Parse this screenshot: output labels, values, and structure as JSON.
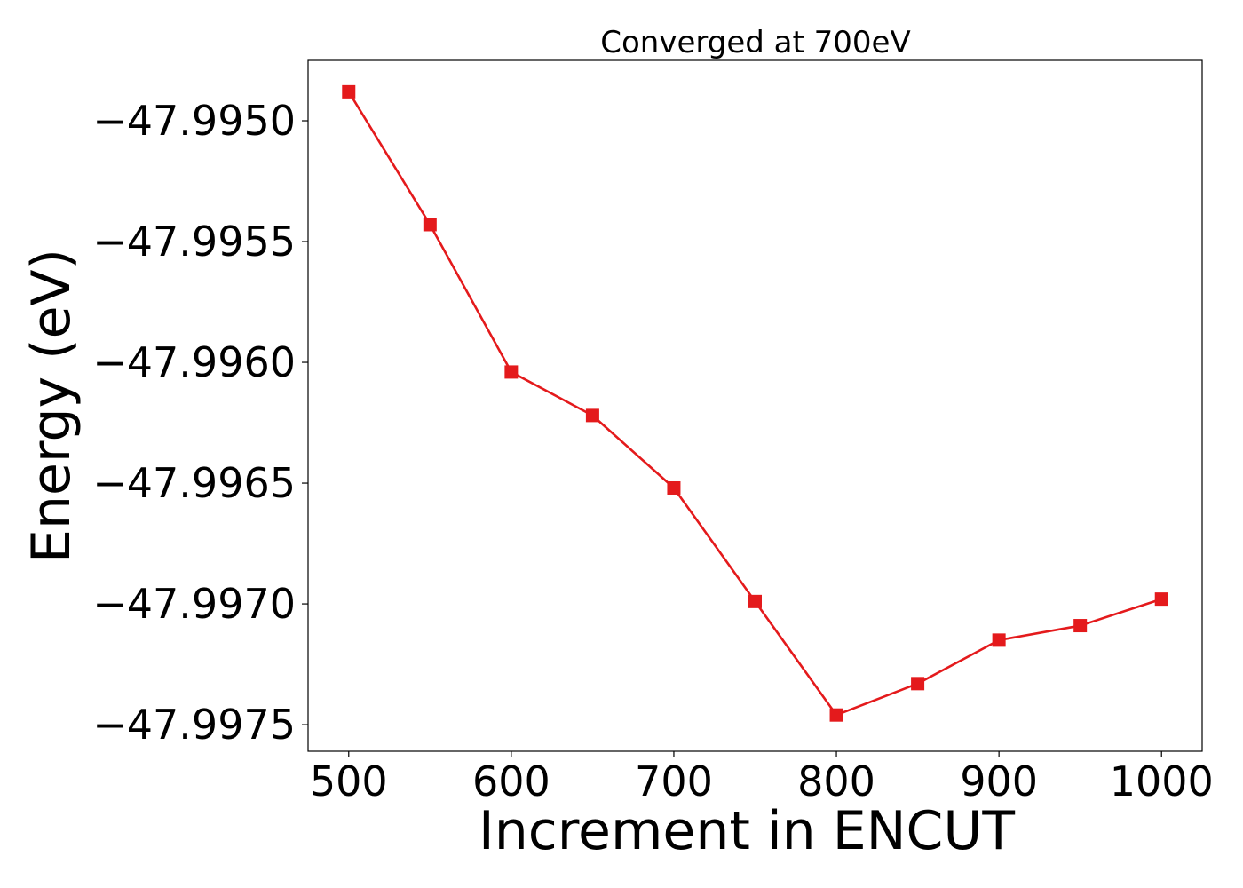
{
  "chart_data": {
    "type": "line",
    "title": "Converged at 700eV",
    "xlabel": "Increment in ENCUT",
    "ylabel": "Energy (eV)",
    "x": [
      500,
      550,
      600,
      650,
      700,
      750,
      800,
      850,
      900,
      950,
      1000
    ],
    "series": [
      {
        "name": "",
        "values": [
          -47.99488,
          -47.99543,
          -47.99604,
          -47.99622,
          -47.99652,
          -47.99699,
          -47.99746,
          -47.99733,
          -47.99715,
          -47.99709,
          -47.99698
        ],
        "color": "#e41a1c",
        "marker": "square"
      }
    ],
    "xticks": [
      500,
      600,
      700,
      800,
      900,
      1000
    ],
    "xtick_labels": [
      "500",
      "600",
      "700",
      "800",
      "900",
      "1000"
    ],
    "yticks": [
      -47.995,
      -47.9955,
      -47.996,
      -47.9965,
      -47.997,
      -47.9975
    ],
    "ytick_labels": [
      "−47.9950",
      "−47.9955",
      "−47.9960",
      "−47.9965",
      "−47.9970",
      "−47.9975"
    ],
    "xlim": [
      475,
      1025
    ],
    "ylim": [
      -47.99761,
      -47.99475
    ],
    "grid": false,
    "legend": "none"
  }
}
